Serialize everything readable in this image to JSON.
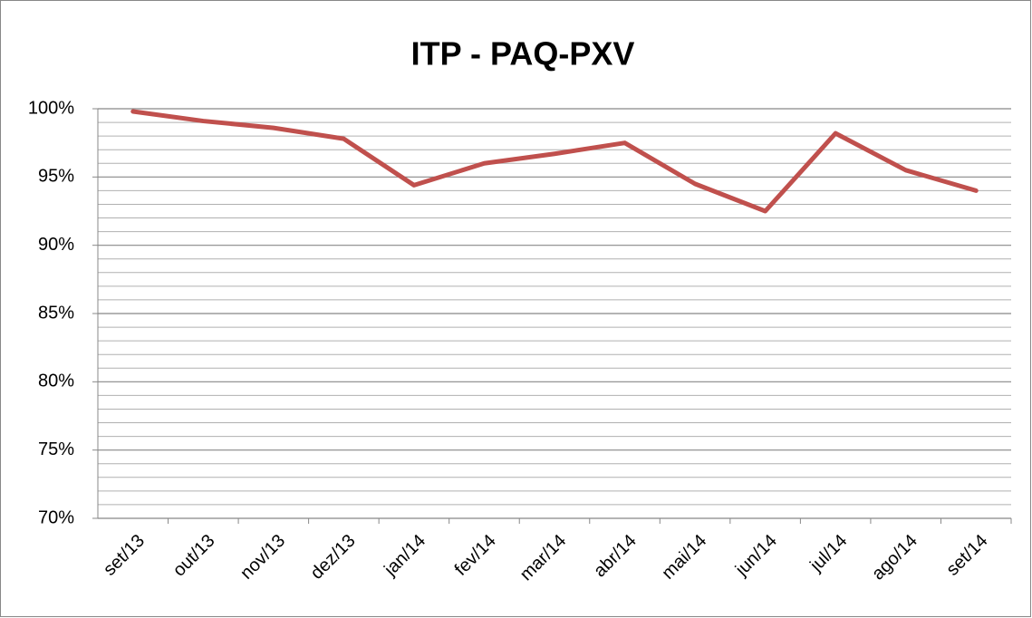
{
  "chart_data": {
    "type": "line",
    "title": "ITP - PAQ-PXV",
    "categories": [
      "set/13",
      "out/13",
      "nov/13",
      "dez/13",
      "jan/14",
      "fev/14",
      "mar/14",
      "abr/14",
      "mai/14",
      "jun/14",
      "jul/14",
      "ago/14",
      "set/14"
    ],
    "series": [
      {
        "name": "ITP",
        "color": "#c0504d",
        "values": [
          99.8,
          99.1,
          98.6,
          97.8,
          94.4,
          96.0,
          96.7,
          97.5,
          94.5,
          92.5,
          98.2,
          95.5,
          94.0
        ]
      }
    ],
    "ylim": [
      70,
      100
    ],
    "yticks": [
      {
        "value": 70,
        "label": "70%"
      },
      {
        "value": 75,
        "label": "75%"
      },
      {
        "value": 80,
        "label": "80%"
      },
      {
        "value": 85,
        "label": "85%"
      },
      {
        "value": 90,
        "label": "90%"
      },
      {
        "value": 95,
        "label": "95%"
      },
      {
        "value": 100,
        "label": "100%"
      }
    ],
    "grid": true,
    "minor_grid": true,
    "legend": false
  }
}
